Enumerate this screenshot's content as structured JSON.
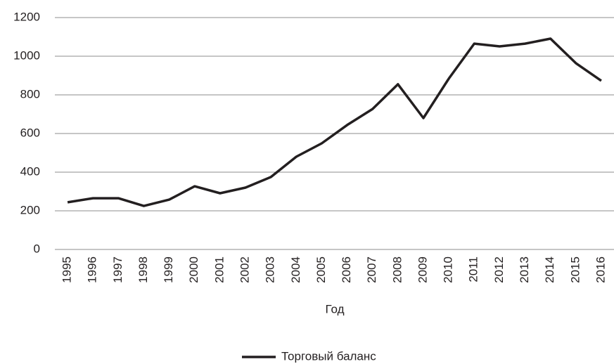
{
  "chart_data": {
    "type": "line",
    "x_label": "Год",
    "categories": [
      "1995",
      "1996",
      "1997",
      "1998",
      "1999",
      "2000",
      "2001",
      "2002",
      "2003",
      "2004",
      "2005",
      "2006",
      "2007",
      "2008",
      "2009",
      "2010",
      "2011",
      "2012",
      "2013",
      "2014",
      "2015",
      "2016"
    ],
    "series": [
      {
        "name": "Торговый баланс",
        "color": "#231f20",
        "values": [
          244,
          265,
          265,
          225,
          258,
          327,
          291,
          320,
          375,
          480,
          549,
          644,
          727,
          855,
          680,
          884,
          1065,
          1051,
          1065,
          1091,
          964,
          873
        ]
      }
    ],
    "ylim": [
      0,
      1200
    ],
    "yticks": [
      0,
      200,
      400,
      600,
      800,
      1000,
      1200
    ],
    "grid": true,
    "legend": "bottom"
  }
}
